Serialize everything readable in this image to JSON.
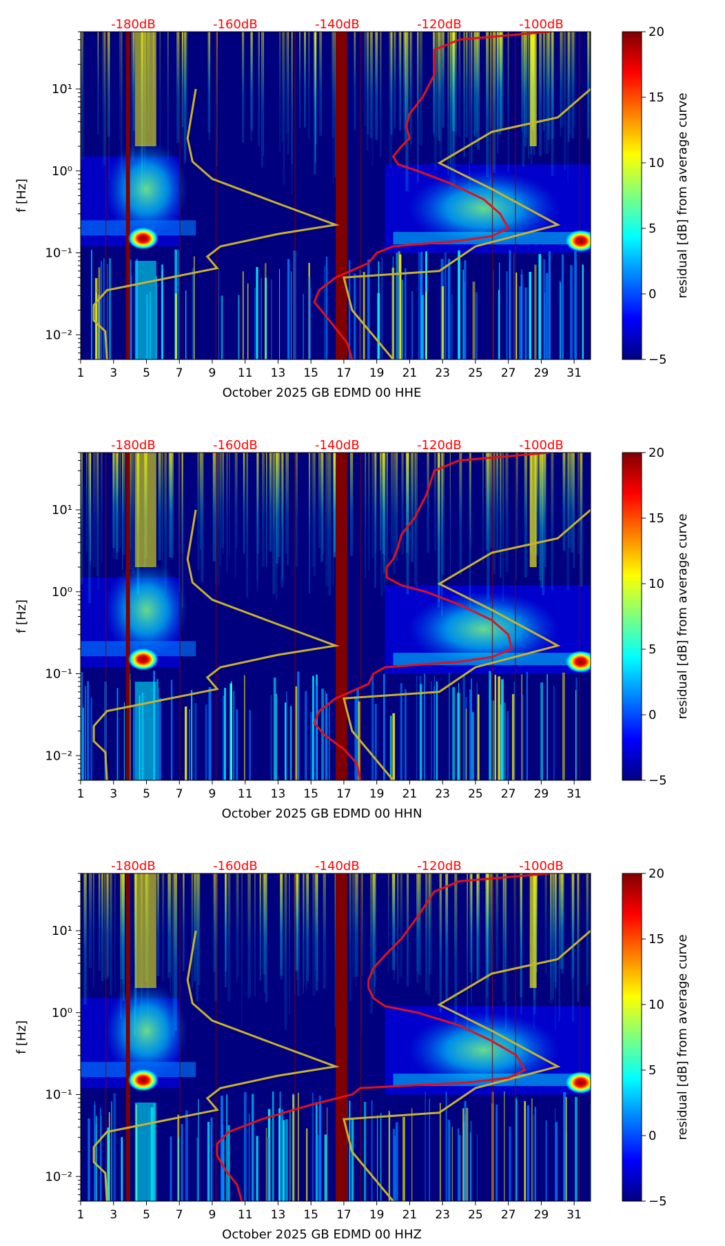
{
  "colors": {
    "background": "#ffffff",
    "plot_base": "#00007f",
    "top_label": "#ff0000",
    "reference_curve": "#c9b22b",
    "median_curve": "#e3111b",
    "vertical_band": "#7f0000",
    "axis": "#000000",
    "colormap": [
      "#00007f",
      "#0000ff",
      "#007fff",
      "#00ffff",
      "#7fff7f",
      "#ffff00",
      "#ff7f00",
      "#ff0000",
      "#7f0000"
    ]
  },
  "chart_data": [
    {
      "type": "heatmap",
      "title": "",
      "xlabel": "October 2025 GB EDMD 00 HHE",
      "ylabel": "f [Hz]",
      "x_ticks": [
        1,
        3,
        5,
        7,
        9,
        11,
        13,
        15,
        17,
        19,
        21,
        23,
        25,
        27,
        29,
        31
      ],
      "x_tick_labels": [
        "1",
        "3",
        "5",
        "7",
        "9",
        "11",
        "13",
        "15",
        "17",
        "19",
        "21",
        "23",
        "25",
        "27",
        "29",
        "31"
      ],
      "xlim": [
        1,
        32
      ],
      "y_scale": "log",
      "ylim": [
        0.005,
        50
      ],
      "y_ticks": [
        0.01,
        0.1,
        1,
        10
      ],
      "y_tick_labels": [
        "10⁻²",
        "10⁻¹",
        "10⁰",
        "10¹"
      ],
      "top_axis_labels": [
        "-180dB",
        "-160dB",
        "-140dB",
        "-120dB",
        "-100dB"
      ],
      "top_axis_positions": [
        4.2,
        10.4,
        16.6,
        22.8,
        29.0
      ],
      "colorbar": {
        "label": "residual [dB] from average curve",
        "min": -5,
        "max": 20,
        "ticks": [
          -5,
          0,
          5,
          10,
          15,
          20
        ],
        "tick_labels": [
          "−5",
          "0",
          "5",
          "10",
          "15",
          "20"
        ]
      },
      "saturated_bands": [
        [
          3.75,
          4.0
        ],
        [
          16.5,
          17.2
        ]
      ],
      "noise_model_curve": {
        "x": [
          8.0,
          7.5,
          7.8,
          9.0,
          13.0,
          16.5,
          13.0,
          9.5,
          8.7,
          9.3,
          2.6,
          1.8,
          1.8,
          2.5,
          2.6
        ],
        "f": [
          10,
          2.5,
          1.3,
          0.8,
          0.4,
          0.22,
          0.17,
          0.12,
          0.09,
          0.065,
          0.035,
          0.023,
          0.015,
          0.011,
          0.005
        ]
      },
      "noise_model_curve_2": {
        "x": [
          32.0,
          30.0,
          26.0,
          22.8,
          26.0,
          30.0,
          25.0,
          22.8,
          17.0,
          17.5,
          20.0
        ],
        "f": [
          10,
          4.5,
          3.0,
          1.25,
          0.6,
          0.22,
          0.12,
          0.06,
          0.05,
          0.02,
          0.005
        ]
      },
      "median_curve": {
        "x": [
          29.5,
          24.0,
          22.5,
          22.5,
          21.8,
          21.0,
          20.8,
          21.0,
          20.5,
          20.0,
          20.3,
          21.5,
          23.5,
          25.5,
          26.5,
          27.0,
          26.0,
          24.0,
          20.0,
          19.0,
          18.5,
          16.5,
          15.5,
          15.2,
          15.8,
          16.5,
          17.2,
          17.5
        ],
        "f": [
          50,
          40,
          30,
          15,
          8,
          5,
          3.5,
          2.5,
          2.0,
          1.5,
          1.2,
          1.0,
          0.7,
          0.45,
          0.3,
          0.2,
          0.16,
          0.14,
          0.12,
          0.1,
          0.075,
          0.05,
          0.035,
          0.025,
          0.018,
          0.012,
          0.008,
          0.005
        ]
      },
      "hot_spots": [
        {
          "x": 4.8,
          "f": 0.15
        },
        {
          "x": 31.4,
          "f": 0.14
        }
      ]
    },
    {
      "type": "heatmap",
      "title": "",
      "xlabel": "October 2025 GB EDMD 00 HHN",
      "ylabel": "f [Hz]",
      "x_ticks": [
        1,
        3,
        5,
        7,
        9,
        11,
        13,
        15,
        17,
        19,
        21,
        23,
        25,
        27,
        29,
        31
      ],
      "x_tick_labels": [
        "1",
        "3",
        "5",
        "7",
        "9",
        "11",
        "13",
        "15",
        "17",
        "19",
        "21",
        "23",
        "25",
        "27",
        "29",
        "31"
      ],
      "xlim": [
        1,
        32
      ],
      "y_scale": "log",
      "ylim": [
        0.005,
        50
      ],
      "y_ticks": [
        0.01,
        0.1,
        1,
        10
      ],
      "y_tick_labels": [
        "10⁻²",
        "10⁻¹",
        "10⁰",
        "10¹"
      ],
      "top_axis_labels": [
        "-180dB",
        "-160dB",
        "-140dB",
        "-120dB",
        "-100dB"
      ],
      "top_axis_positions": [
        4.2,
        10.4,
        16.6,
        22.8,
        29.0
      ],
      "colorbar": {
        "label": "residual [dB] from average curve",
        "min": -5,
        "max": 20,
        "ticks": [
          -5,
          0,
          5,
          10,
          15,
          20
        ],
        "tick_labels": [
          "−5",
          "0",
          "5",
          "10",
          "15",
          "20"
        ]
      },
      "saturated_bands": [
        [
          3.75,
          4.0
        ],
        [
          16.5,
          17.2
        ]
      ],
      "noise_model_curve": {
        "x": [
          8.0,
          7.5,
          7.8,
          9.0,
          13.0,
          16.5,
          13.0,
          9.5,
          8.7,
          9.3,
          2.6,
          1.8,
          1.8,
          2.5,
          2.6
        ],
        "f": [
          10,
          2.5,
          1.3,
          0.8,
          0.4,
          0.22,
          0.17,
          0.12,
          0.09,
          0.065,
          0.035,
          0.023,
          0.015,
          0.011,
          0.005
        ]
      },
      "noise_model_curve_2": {
        "x": [
          32.0,
          30.0,
          26.0,
          22.8,
          26.0,
          30.0,
          25.0,
          22.8,
          17.0,
          17.5,
          20.0
        ],
        "f": [
          10,
          4.5,
          3.0,
          1.25,
          0.6,
          0.22,
          0.12,
          0.06,
          0.05,
          0.02,
          0.005
        ]
      },
      "median_curve": {
        "x": [
          29.5,
          24.0,
          22.5,
          22.0,
          21.3,
          20.5,
          20.3,
          20.0,
          19.6,
          19.6,
          20.5,
          22.0,
          24.0,
          26.0,
          27.0,
          27.2,
          26.0,
          24.0,
          19.5,
          18.8,
          18.5,
          16.5,
          15.5,
          15.2,
          15.8,
          17.0,
          17.8,
          18.0
        ],
        "f": [
          50,
          40,
          30,
          15,
          8,
          5,
          3.5,
          2.5,
          2.0,
          1.5,
          1.2,
          1.0,
          0.7,
          0.45,
          0.3,
          0.2,
          0.16,
          0.14,
          0.12,
          0.1,
          0.075,
          0.05,
          0.035,
          0.025,
          0.018,
          0.012,
          0.008,
          0.005
        ]
      },
      "hot_spots": [
        {
          "x": 4.8,
          "f": 0.15
        },
        {
          "x": 31.4,
          "f": 0.14
        }
      ]
    },
    {
      "type": "heatmap",
      "title": "",
      "xlabel": "October 2025 GB EDMD 00 HHZ",
      "ylabel": "f [Hz]",
      "x_ticks": [
        1,
        3,
        5,
        7,
        9,
        11,
        13,
        15,
        17,
        19,
        21,
        23,
        25,
        27,
        29,
        31
      ],
      "x_tick_labels": [
        "1",
        "3",
        "5",
        "7",
        "9",
        "11",
        "13",
        "15",
        "17",
        "19",
        "21",
        "23",
        "25",
        "27",
        "29",
        "31"
      ],
      "xlim": [
        1,
        32
      ],
      "y_scale": "log",
      "ylim": [
        0.005,
        50
      ],
      "y_ticks": [
        0.01,
        0.1,
        1,
        10
      ],
      "y_tick_labels": [
        "10⁻²",
        "10⁻¹",
        "10⁰",
        "10¹"
      ],
      "top_axis_labels": [
        "-180dB",
        "-160dB",
        "-140dB",
        "-120dB",
        "-100dB"
      ],
      "top_axis_positions": [
        4.2,
        10.4,
        16.6,
        22.8,
        29.0
      ],
      "colorbar": {
        "label": "residual [dB] from average curve",
        "min": -5,
        "max": 20,
        "ticks": [
          -5,
          0,
          5,
          10,
          15,
          20
        ],
        "tick_labels": [
          "−5",
          "0",
          "5",
          "10",
          "15",
          "20"
        ]
      },
      "saturated_bands": [
        [
          3.75,
          4.0
        ],
        [
          16.5,
          17.2
        ]
      ],
      "noise_model_curve": {
        "x": [
          8.0,
          7.5,
          7.8,
          9.0,
          13.0,
          16.5,
          13.0,
          9.5,
          8.7,
          9.3,
          2.6,
          1.8,
          1.8,
          2.5,
          2.6
        ],
        "f": [
          10,
          2.5,
          1.3,
          0.8,
          0.4,
          0.22,
          0.17,
          0.12,
          0.09,
          0.065,
          0.035,
          0.023,
          0.015,
          0.011,
          0.005
        ]
      },
      "noise_model_curve_2": {
        "x": [
          32.0,
          30.0,
          26.0,
          22.8,
          26.0,
          30.0,
          25.0,
          22.8,
          17.0,
          17.5,
          20.0
        ],
        "f": [
          10,
          4.5,
          3.0,
          1.25,
          0.6,
          0.22,
          0.12,
          0.06,
          0.05,
          0.02,
          0.005
        ]
      },
      "median_curve": {
        "x": [
          29.5,
          24.0,
          22.5,
          21.5,
          20.5,
          19.5,
          18.8,
          18.5,
          18.5,
          18.8,
          19.5,
          21.5,
          24.0,
          26.0,
          27.5,
          28.0,
          27.0,
          24.5,
          18.0,
          17.5,
          15.0,
          12.0,
          10.0,
          9.3,
          9.3,
          9.8,
          10.5,
          10.8
        ],
        "f": [
          50,
          40,
          30,
          15,
          8,
          5,
          3.5,
          2.5,
          2.0,
          1.5,
          1.2,
          1.0,
          0.7,
          0.45,
          0.3,
          0.2,
          0.16,
          0.14,
          0.12,
          0.1,
          0.075,
          0.05,
          0.035,
          0.025,
          0.018,
          0.012,
          0.008,
          0.005
        ]
      },
      "hot_spots": [
        {
          "x": 4.8,
          "f": 0.15
        },
        {
          "x": 31.4,
          "f": 0.14
        }
      ]
    }
  ]
}
